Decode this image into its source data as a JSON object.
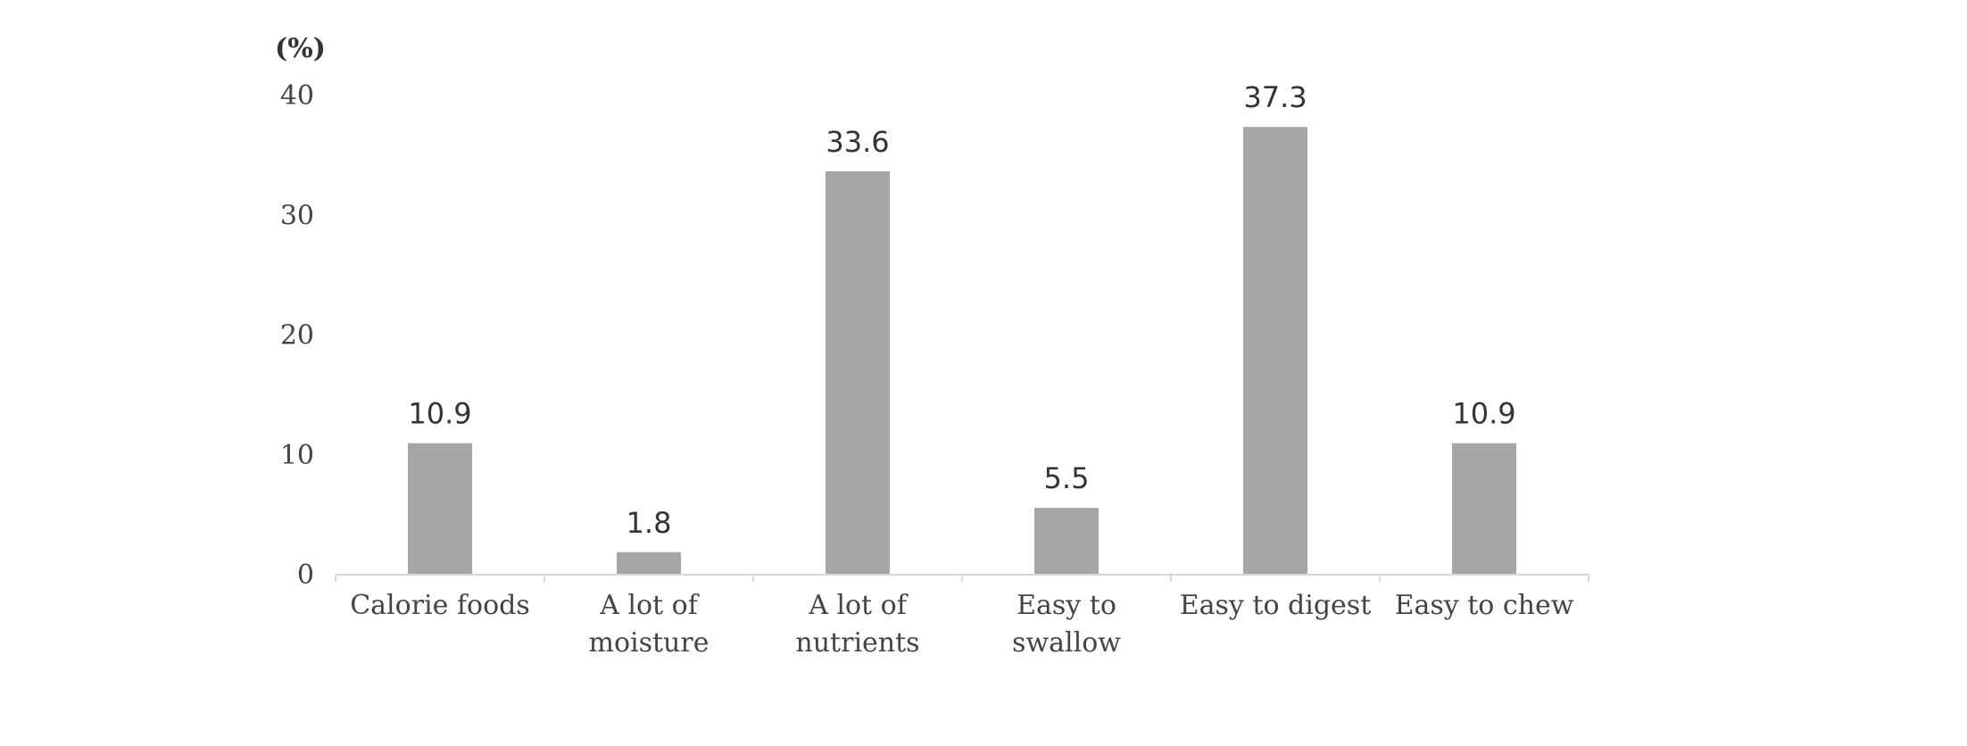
{
  "chart_data": {
    "type": "bar",
    "unit_label": "(%)",
    "categories": [
      [
        "Calorie foods"
      ],
      [
        "A lot of",
        "moisture"
      ],
      [
        "A lot of",
        "nutrients"
      ],
      [
        "Easy to",
        "swallow"
      ],
      [
        "Easy to digest"
      ],
      [
        "Easy to chew"
      ]
    ],
    "values": [
      10.9,
      1.8,
      33.6,
      5.5,
      37.3,
      10.9
    ],
    "value_labels": [
      "10.9",
      "1.8",
      "33.6",
      "5.5",
      "37.3",
      "10.9"
    ],
    "yticks": [
      "0",
      "10",
      "20",
      "30",
      "40"
    ],
    "ylim": [
      0,
      40
    ],
    "grid": false,
    "bar_color": "#a6a6a6",
    "axis_color": "#d9d9d9"
  }
}
